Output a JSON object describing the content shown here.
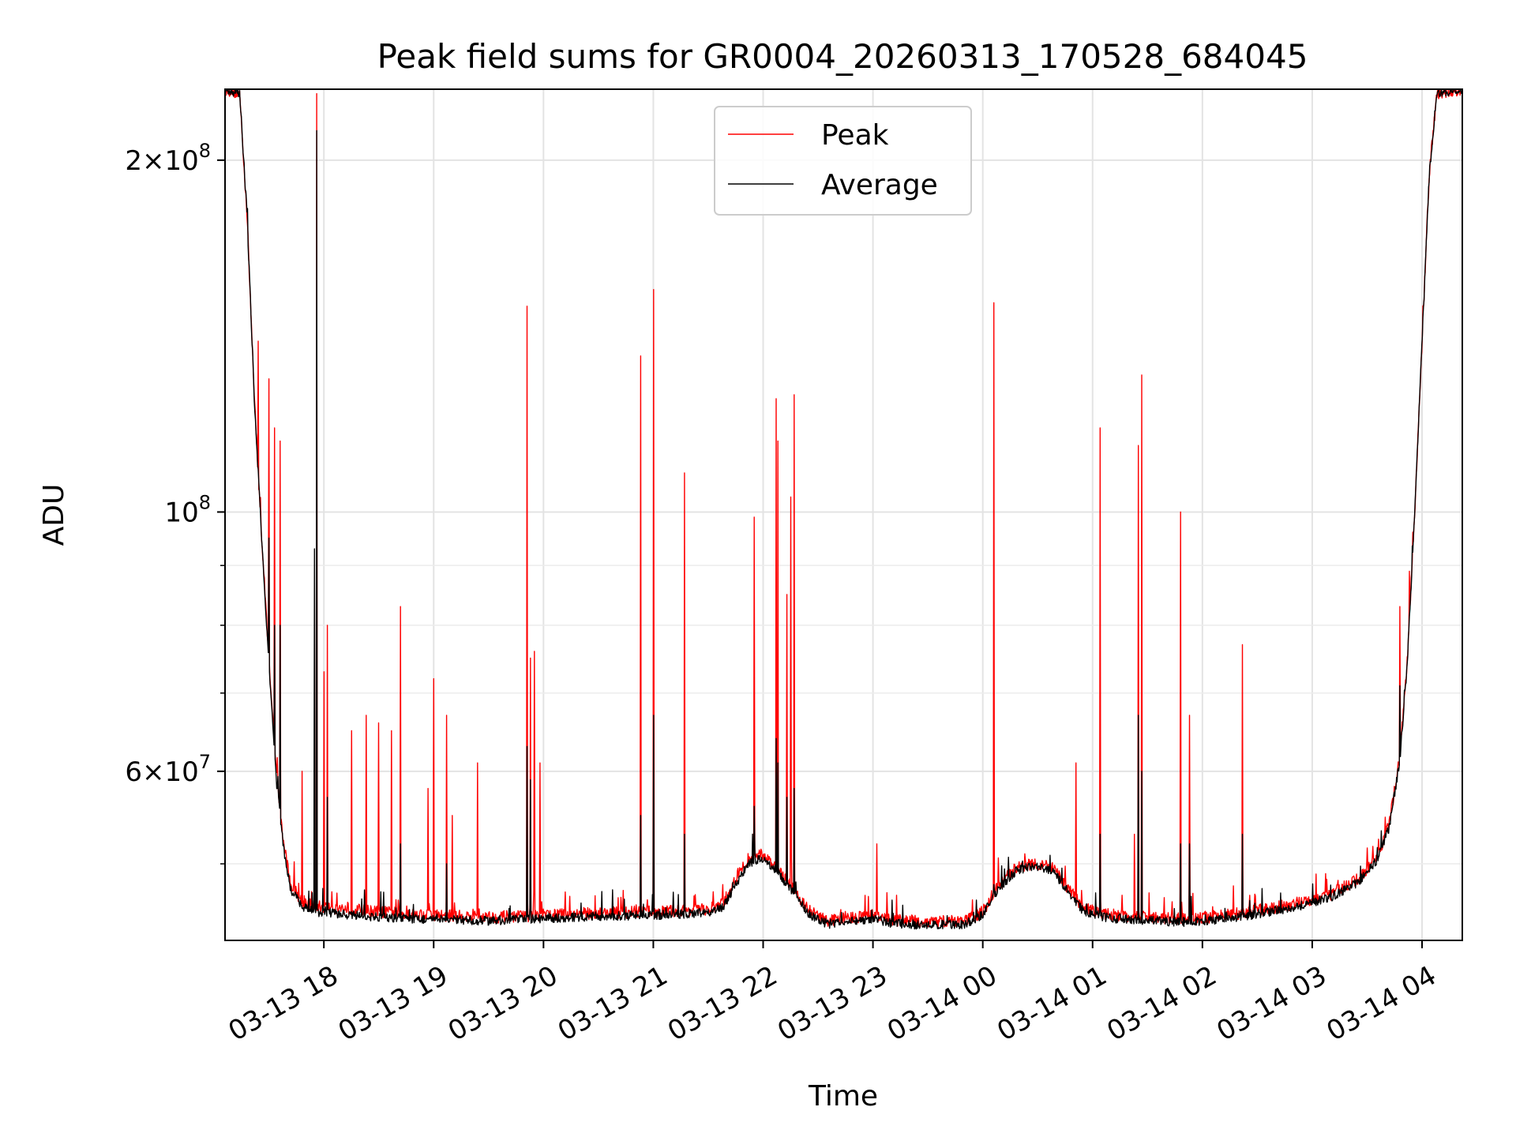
{
  "chart_data": {
    "type": "line",
    "title": "Peak field sums for GR0004_20260313_170528_684045",
    "xlabel": "Time",
    "ylabel": "ADU",
    "x_type": "datetime",
    "xlim": [
      "2026-03-13T17:06:00",
      "2026-03-14T04:22:00"
    ],
    "ylim": [
      43000000,
      230000000
    ],
    "yscale": "log",
    "grid": true,
    "legend_position": "top-center",
    "x_ticks": [
      {
        "value": "2026-03-13T18:00:00",
        "label": "03-13 18"
      },
      {
        "value": "2026-03-13T19:00:00",
        "label": "03-13 19"
      },
      {
        "value": "2026-03-13T20:00:00",
        "label": "03-13 20"
      },
      {
        "value": "2026-03-13T21:00:00",
        "label": "03-13 21"
      },
      {
        "value": "2026-03-13T22:00:00",
        "label": "03-13 22"
      },
      {
        "value": "2026-03-13T23:00:00",
        "label": "03-13 23"
      },
      {
        "value": "2026-03-14T00:00:00",
        "label": "03-14 00"
      },
      {
        "value": "2026-03-14T01:00:00",
        "label": "03-14 01"
      },
      {
        "value": "2026-03-14T02:00:00",
        "label": "03-14 02"
      },
      {
        "value": "2026-03-14T03:00:00",
        "label": "03-14 03"
      },
      {
        "value": "2026-03-14T04:00:00",
        "label": "03-14 04"
      }
    ],
    "y_major_ticks": [
      {
        "value": 60000000,
        "mantissa": "6",
        "exponent": "7"
      },
      {
        "value": 100000000,
        "mantissa": "",
        "exponent": "8"
      },
      {
        "value": 200000000,
        "mantissa": "2",
        "exponent": "8"
      }
    ],
    "y_minor_ticks": [
      50000000,
      70000000,
      80000000,
      90000000
    ],
    "series": [
      {
        "name": "Peak",
        "color": "#ff0000",
        "baseline": [
          [
            "2026-03-13T17:06:00",
            230000000
          ],
          [
            "2026-03-13T17:14:00",
            228000000
          ],
          [
            "2026-03-13T17:18:00",
            180000000
          ],
          [
            "2026-03-13T17:22:00",
            125000000
          ],
          [
            "2026-03-13T17:26:00",
            95000000
          ],
          [
            "2026-03-13T17:30:00",
            75000000
          ],
          [
            "2026-03-13T17:34:00",
            60000000
          ],
          [
            "2026-03-13T17:38:00",
            52000000
          ],
          [
            "2026-03-13T17:42:00",
            48000000
          ],
          [
            "2026-03-13T17:48:00",
            46500000
          ],
          [
            "2026-03-13T17:55:00",
            46000000
          ],
          [
            "2026-03-13T18:30:00",
            45500000
          ],
          [
            "2026-03-13T19:00:00",
            45200000
          ],
          [
            "2026-03-13T19:30:00",
            45000000
          ],
          [
            "2026-03-13T20:00:00",
            45200000
          ],
          [
            "2026-03-13T20:30:00",
            45400000
          ],
          [
            "2026-03-13T21:00:00",
            45500000
          ],
          [
            "2026-03-13T21:30:00",
            45700000
          ],
          [
            "2026-03-13T21:38:00",
            46200000
          ],
          [
            "2026-03-13T21:45:00",
            48500000
          ],
          [
            "2026-03-13T21:52:00",
            50500000
          ],
          [
            "2026-03-13T21:58:00",
            51000000
          ],
          [
            "2026-03-13T22:05:00",
            50200000
          ],
          [
            "2026-03-13T22:15:00",
            48000000
          ],
          [
            "2026-03-13T22:25:00",
            45600000
          ],
          [
            "2026-03-13T22:35:00",
            44700000
          ],
          [
            "2026-03-13T22:50:00",
            45000000
          ],
          [
            "2026-03-13T23:00:00",
            45200000
          ],
          [
            "2026-03-13T23:10:00",
            44800000
          ],
          [
            "2026-03-13T23:30:00",
            44600000
          ],
          [
            "2026-03-13T23:50:00",
            44700000
          ],
          [
            "2026-03-14T00:00:00",
            45500000
          ],
          [
            "2026-03-14T00:08:00",
            47800000
          ],
          [
            "2026-03-14T00:18:00",
            49600000
          ],
          [
            "2026-03-14T00:28:00",
            50100000
          ],
          [
            "2026-03-14T00:38:00",
            49600000
          ],
          [
            "2026-03-14T00:46:00",
            47800000
          ],
          [
            "2026-03-14T00:55:00",
            45800000
          ],
          [
            "2026-03-14T01:10:00",
            45200000
          ],
          [
            "2026-03-14T01:30:00",
            45000000
          ],
          [
            "2026-03-14T01:50:00",
            44900000
          ],
          [
            "2026-03-14T02:10:00",
            45100000
          ],
          [
            "2026-03-14T02:30:00",
            45600000
          ],
          [
            "2026-03-14T02:50:00",
            46200000
          ],
          [
            "2026-03-14T03:10:00",
            47100000
          ],
          [
            "2026-03-14T03:25:00",
            48500000
          ],
          [
            "2026-03-14T03:35:00",
            50500000
          ],
          [
            "2026-03-14T03:42:00",
            54000000
          ],
          [
            "2026-03-14T03:48:00",
            62000000
          ],
          [
            "2026-03-14T03:52:00",
            75000000
          ],
          [
            "2026-03-14T03:56:00",
            100000000
          ],
          [
            "2026-03-14T04:00:00",
            140000000
          ],
          [
            "2026-03-14T04:04:00",
            195000000
          ],
          [
            "2026-03-14T04:08:00",
            228000000
          ],
          [
            "2026-03-14T04:22:00",
            230000000
          ]
        ],
        "spikes": [
          [
            "2026-03-13T17:24:00",
            140000000
          ],
          [
            "2026-03-13T17:30:00",
            130000000
          ],
          [
            "2026-03-13T17:33:00",
            118000000
          ],
          [
            "2026-03-13T17:36:00",
            115000000
          ],
          [
            "2026-03-13T17:48:00",
            60000000
          ],
          [
            "2026-03-13T17:56:00",
            228000000
          ],
          [
            "2026-03-13T18:00:00",
            73000000
          ],
          [
            "2026-03-13T18:02:00",
            80000000
          ],
          [
            "2026-03-13T18:15:00",
            65000000
          ],
          [
            "2026-03-13T18:23:00",
            67000000
          ],
          [
            "2026-03-13T18:30:00",
            66000000
          ],
          [
            "2026-03-13T18:37:00",
            65000000
          ],
          [
            "2026-03-13T18:42:00",
            83000000
          ],
          [
            "2026-03-13T18:57:00",
            58000000
          ],
          [
            "2026-03-13T19:00:00",
            72000000
          ],
          [
            "2026-03-13T19:07:00",
            67000000
          ],
          [
            "2026-03-13T19:10:00",
            55000000
          ],
          [
            "2026-03-13T19:24:00",
            61000000
          ],
          [
            "2026-03-13T19:51:00",
            150000000
          ],
          [
            "2026-03-13T19:53:00",
            75000000
          ],
          [
            "2026-03-13T19:55:00",
            76000000
          ],
          [
            "2026-03-13T19:58:00",
            61000000
          ],
          [
            "2026-03-13T20:53:00",
            136000000
          ],
          [
            "2026-03-13T21:00:00",
            155000000
          ],
          [
            "2026-03-13T21:17:00",
            108000000
          ],
          [
            "2026-03-13T21:38:00",
            48000000
          ],
          [
            "2026-03-13T21:55:00",
            99000000
          ],
          [
            "2026-03-13T22:07:00",
            125000000
          ],
          [
            "2026-03-13T22:08:00",
            115000000
          ],
          [
            "2026-03-13T22:13:00",
            85000000
          ],
          [
            "2026-03-13T22:15:00",
            103000000
          ],
          [
            "2026-03-13T22:17:00",
            126000000
          ],
          [
            "2026-03-13T23:02:00",
            52000000
          ],
          [
            "2026-03-13T23:13:00",
            47000000
          ],
          [
            "2026-03-14T00:06:00",
            151000000
          ],
          [
            "2026-03-14T00:14:00",
            50000000
          ],
          [
            "2026-03-14T00:23:00",
            51000000
          ],
          [
            "2026-03-14T00:51:00",
            61000000
          ],
          [
            "2026-03-14T01:04:00",
            118000000
          ],
          [
            "2026-03-14T01:23:00",
            53000000
          ],
          [
            "2026-03-14T01:25:00",
            114000000
          ],
          [
            "2026-03-14T01:27:00",
            131000000
          ],
          [
            "2026-03-14T01:48:00",
            100000000
          ],
          [
            "2026-03-14T01:53:00",
            67000000
          ],
          [
            "2026-03-14T02:22:00",
            77000000
          ],
          [
            "2026-03-14T02:26:00",
            47000000
          ],
          [
            "2026-03-14T03:02:00",
            49000000
          ],
          [
            "2026-03-14T03:08:00",
            48500000
          ],
          [
            "2026-03-14T03:48:00",
            83000000
          ],
          [
            "2026-03-14T03:53:00",
            89000000
          ]
        ]
      },
      {
        "name": "Average",
        "color": "#000000",
        "baseline": [
          [
            "2026-03-13T17:06:00",
            230000000
          ],
          [
            "2026-03-13T17:14:00",
            228000000
          ],
          [
            "2026-03-13T17:18:00",
            180000000
          ],
          [
            "2026-03-13T17:22:00",
            125000000
          ],
          [
            "2026-03-13T17:26:00",
            95000000
          ],
          [
            "2026-03-13T17:30:00",
            74000000
          ],
          [
            "2026-03-13T17:34:00",
            59000000
          ],
          [
            "2026-03-13T17:38:00",
            51500000
          ],
          [
            "2026-03-13T17:42:00",
            47500000
          ],
          [
            "2026-03-13T17:48:00",
            46000000
          ],
          [
            "2026-03-13T17:55:00",
            45500000
          ],
          [
            "2026-03-13T18:30:00",
            45000000
          ],
          [
            "2026-03-13T19:00:00",
            44800000
          ],
          [
            "2026-03-13T19:30:00",
            44700000
          ],
          [
            "2026-03-13T20:00:00",
            44900000
          ],
          [
            "2026-03-13T20:30:00",
            45100000
          ],
          [
            "2026-03-13T21:00:00",
            45200000
          ],
          [
            "2026-03-13T21:30:00",
            45400000
          ],
          [
            "2026-03-13T21:38:00",
            45900000
          ],
          [
            "2026-03-13T21:45:00",
            48000000
          ],
          [
            "2026-03-13T21:52:00",
            50000000
          ],
          [
            "2026-03-13T21:58:00",
            50500000
          ],
          [
            "2026-03-13T22:05:00",
            49800000
          ],
          [
            "2026-03-13T22:15:00",
            47600000
          ],
          [
            "2026-03-13T22:25:00",
            45300000
          ],
          [
            "2026-03-13T22:35:00",
            44400000
          ],
          [
            "2026-03-13T22:50:00",
            44700000
          ],
          [
            "2026-03-13T23:00:00",
            44900000
          ],
          [
            "2026-03-13T23:10:00",
            44500000
          ],
          [
            "2026-03-13T23:30:00",
            44300000
          ],
          [
            "2026-03-13T23:50:00",
            44400000
          ],
          [
            "2026-03-14T00:00:00",
            45200000
          ],
          [
            "2026-03-14T00:08:00",
            47500000
          ],
          [
            "2026-03-14T00:18:00",
            49300000
          ],
          [
            "2026-03-14T00:28:00",
            49800000
          ],
          [
            "2026-03-14T00:38:00",
            49300000
          ],
          [
            "2026-03-14T00:46:00",
            47500000
          ],
          [
            "2026-03-14T00:55:00",
            45500000
          ],
          [
            "2026-03-14T01:10:00",
            44900000
          ],
          [
            "2026-03-14T01:30:00",
            44700000
          ],
          [
            "2026-03-14T01:50:00",
            44600000
          ],
          [
            "2026-03-14T02:10:00",
            44800000
          ],
          [
            "2026-03-14T02:30:00",
            45300000
          ],
          [
            "2026-03-14T02:50:00",
            45900000
          ],
          [
            "2026-03-14T03:10:00",
            46800000
          ],
          [
            "2026-03-14T03:25:00",
            48200000
          ],
          [
            "2026-03-14T03:35:00",
            50200000
          ],
          [
            "2026-03-14T03:42:00",
            53700000
          ],
          [
            "2026-03-14T03:48:00",
            61500000
          ],
          [
            "2026-03-14T03:52:00",
            74500000
          ],
          [
            "2026-03-14T03:56:00",
            100000000
          ],
          [
            "2026-03-14T04:00:00",
            140000000
          ],
          [
            "2026-03-14T04:04:00",
            195000000
          ],
          [
            "2026-03-14T04:08:00",
            228000000
          ],
          [
            "2026-03-14T04:22:00",
            230000000
          ]
        ],
        "spikes": [
          [
            "2026-03-13T17:30:00",
            95000000
          ],
          [
            "2026-03-13T17:33:00",
            80000000
          ],
          [
            "2026-03-13T17:36:00",
            80000000
          ],
          [
            "2026-03-13T17:55:00",
            93000000
          ],
          [
            "2026-03-13T17:56:00",
            212000000
          ],
          [
            "2026-03-13T18:02:00",
            57000000
          ],
          [
            "2026-03-13T18:42:00",
            52000000
          ],
          [
            "2026-03-13T19:07:00",
            50000000
          ],
          [
            "2026-03-13T19:51:00",
            63000000
          ],
          [
            "2026-03-13T19:53:00",
            59000000
          ],
          [
            "2026-03-13T20:53:00",
            55000000
          ],
          [
            "2026-03-13T21:00:00",
            67000000
          ],
          [
            "2026-03-13T21:17:00",
            53000000
          ],
          [
            "2026-03-13T21:55:00",
            56000000
          ],
          [
            "2026-03-13T22:07:00",
            64000000
          ],
          [
            "2026-03-13T22:08:00",
            61000000
          ],
          [
            "2026-03-13T22:13:00",
            57000000
          ],
          [
            "2026-03-13T22:17:00",
            58000000
          ],
          [
            "2026-03-14T00:06:00",
            48000000
          ],
          [
            "2026-03-14T01:04:00",
            53000000
          ],
          [
            "2026-03-14T01:25:00",
            67000000
          ],
          [
            "2026-03-14T01:27:00",
            60000000
          ],
          [
            "2026-03-14T01:48:00",
            52000000
          ],
          [
            "2026-03-14T01:53:00",
            52000000
          ],
          [
            "2026-03-14T02:22:00",
            53000000
          ],
          [
            "2026-03-14T03:48:00",
            71000000
          ]
        ]
      }
    ]
  }
}
